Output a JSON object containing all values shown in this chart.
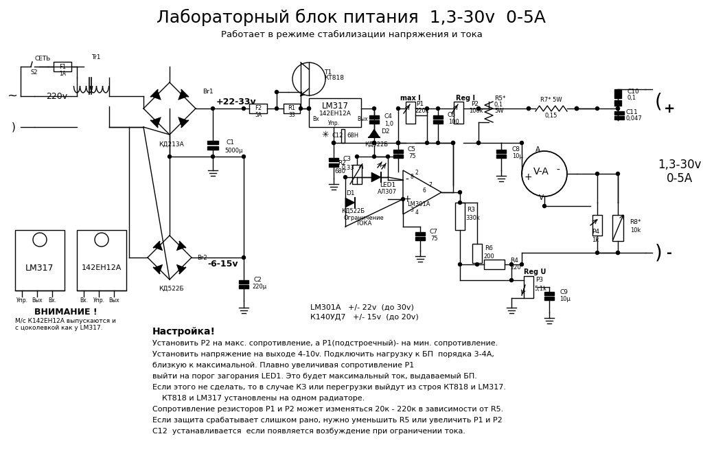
{
  "title": "Лабораторный блок питания  1,3-30v  0-5A",
  "subtitle": "Работает в режиме стабилизации напряжения и тока",
  "bg_color": "#ffffff",
  "line_color": "#000000",
  "bottom_lines": [
    "Установить Р2 на макс. сопротивление, а Р1(подстроечный)- на мин. сопротивление.",
    "Установить напряжение на выходе 4-10v. Подключить нагрузку к БП  порядка 3-4А,",
    "близкую к максимальной. Плавно увеличивая сопротивление Р1",
    "выйти на порог загорания LED1. Это будет максимальный ток, выдаваемый БП.",
    "Если этого не сделать, то в случае КЗ или перегрузки выйдут из строя КТ818 и LM317.",
    "    КТ818 и LM317 установлены на одном радиаторе.",
    "Сопротивление резисторов Р1 и Р2 может изменяться 20к - 220к в зависимости от R5.",
    "Если защита срабатывает слишком рано, нужно уменьшить R5 или увеличить Р1 и Р2",
    "С12  устанавливается  если появляется возбуждение при ограничении тока."
  ],
  "attention": [
    "ВНИМАНИЕ !",
    "М/с К142ЕН12А выпускаются и",
    "с цоколевкой как у LM317."
  ],
  "opamp_note": [
    "LM301A   +/- 22v  (до 30v)",
    "К140УД7   +/- 15v  (до 20v)"
  ]
}
